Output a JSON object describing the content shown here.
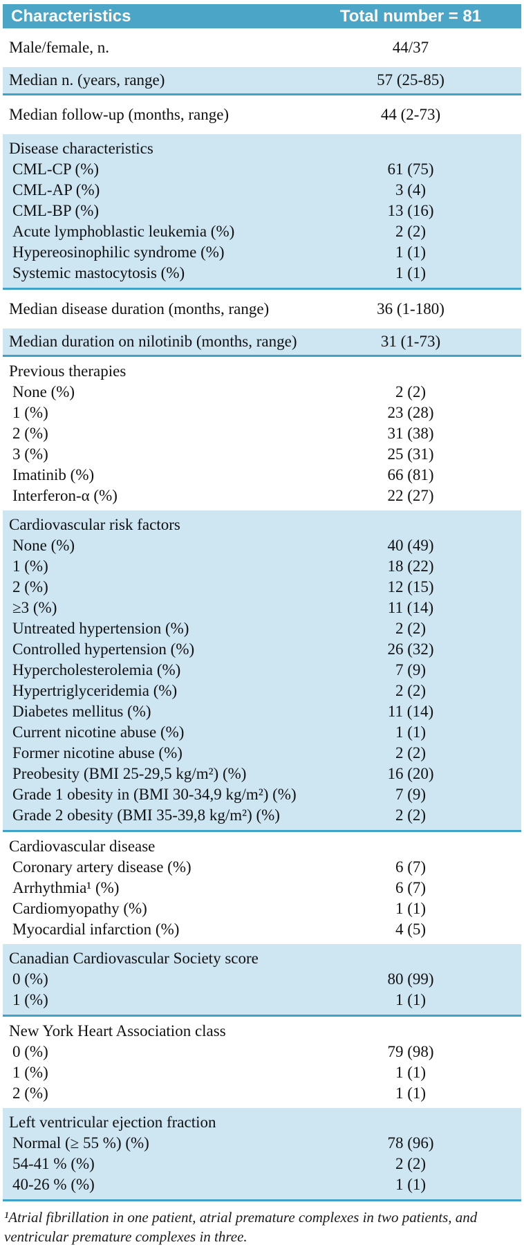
{
  "table": {
    "header": {
      "characteristics_label": "Characteristics",
      "total_label": "Total number = 81"
    },
    "sections": [
      {
        "type": "row",
        "shaded": false,
        "label": "Male/female, n.",
        "value": "44/37"
      },
      {
        "type": "row",
        "shaded": true,
        "label": "Median n. (years, range)",
        "value": "57 (25-85)"
      },
      {
        "type": "row",
        "shaded": false,
        "label": "Median follow-up (months, range)",
        "value": "44 (2-73)"
      },
      {
        "type": "group",
        "shaded": true,
        "title": "Disease characteristics",
        "rows": [
          {
            "label": "CML-CP (%)",
            "value": "61 (75)"
          },
          {
            "label": "CML-AP (%)",
            "value": "3 (4)"
          },
          {
            "label": "CML-BP (%)",
            "value": "13 (16)"
          },
          {
            "label": "Acute lymphoblastic leukemia (%)",
            "value": "2 (2)"
          },
          {
            "label": "Hypereosinophilic syndrome (%)",
            "value": "1 (1)"
          },
          {
            "label": "Systemic mastocytosis (%)",
            "value": "1 (1)"
          }
        ]
      },
      {
        "type": "row",
        "shaded": false,
        "label": "Median disease duration (months, range)",
        "value": "36 (1-180)"
      },
      {
        "type": "row",
        "shaded": true,
        "label": "Median duration on nilotinib (months, range)",
        "value": "31 (1-73)"
      },
      {
        "type": "group",
        "shaded": false,
        "title": "Previous therapies",
        "rows": [
          {
            "label": "None (%)",
            "value": "2 (2)"
          },
          {
            "label": "1 (%)",
            "value": "23 (28)"
          },
          {
            "label": "2 (%)",
            "value": "31 (38)"
          },
          {
            "label": "3 (%)",
            "value": "25 (31)"
          },
          {
            "label": "Imatinib (%)",
            "value": "66 (81)"
          },
          {
            "label": "Interferon-α (%)",
            "value": "22 (27)"
          }
        ]
      },
      {
        "type": "group",
        "shaded": true,
        "title": "Cardiovascular risk factors",
        "rows": [
          {
            "label": "None (%)",
            "value": "40 (49)"
          },
          {
            "label": "1 (%)",
            "value": "18 (22)"
          },
          {
            "label": "2 (%)",
            "value": "12 (15)"
          },
          {
            "label": "≥3 (%)",
            "value": "11 (14)"
          },
          {
            "label": "Untreated hypertension (%)",
            "value": "2 (2)"
          },
          {
            "label": "Controlled hypertension (%)",
            "value": "26 (32)"
          },
          {
            "label": "Hypercholesterolemia (%)",
            "value": "7 (9)"
          },
          {
            "label": "Hypertriglyceridemia (%)",
            "value": "2 (2)"
          },
          {
            "label": "Diabetes mellitus (%)",
            "value": "11 (14)"
          },
          {
            "label": "Current nicotine abuse (%)",
            "value": "1 (1)"
          },
          {
            "label": "Former nicotine abuse (%)",
            "value": "2 (2)"
          },
          {
            "label": "Preobesity (BMI 25-29,5 kg/m²) (%)",
            "value": "16 (20)"
          },
          {
            "label": "Grade 1 obesity in (BMI 30-34,9 kg/m²) (%)",
            "value": "7 (9)"
          },
          {
            "label": "Grade 2 obesity (BMI 35-39,8 kg/m²) (%)",
            "value": "2 (2)"
          }
        ]
      },
      {
        "type": "group",
        "shaded": false,
        "title": "Cardiovascular disease",
        "rows": [
          {
            "label": "Coronary artery disease (%)",
            "value": "6 (7)"
          },
          {
            "label": "Arrhythmia¹ (%)",
            "value": "6 (7)"
          },
          {
            "label": "Cardiomyopathy (%)",
            "value": "1 (1)"
          },
          {
            "label": "Myocardial infarction (%)",
            "value": "4 (5)"
          }
        ]
      },
      {
        "type": "group",
        "shaded": true,
        "title": "Canadian Cardiovascular Society score",
        "rows": [
          {
            "label": "0 (%)",
            "value": "80 (99)"
          },
          {
            "label": "1 (%)",
            "value": "1 (1)"
          }
        ]
      },
      {
        "type": "group",
        "shaded": false,
        "title": "New York Heart Association class",
        "rows": [
          {
            "label": "0 (%)",
            "value": "79 (98)"
          },
          {
            "label": "1 (%)",
            "value": "1 (1)"
          },
          {
            "label": "2 (%)",
            "value": "1 (1)"
          }
        ]
      },
      {
        "type": "group",
        "shaded": true,
        "title": "Left ventricular ejection fraction",
        "rows": [
          {
            "label": "Normal (≥ 55 %) (%)",
            "value": "78 (96)"
          },
          {
            "label": "54-41 % (%)",
            "value": "2 (2)"
          },
          {
            "label": "40-26 % (%)",
            "value": "1 (1)"
          }
        ]
      }
    ],
    "footnote": "¹Atrial fibrillation in one patient, atrial premature complexes in two patients, and ventricular premature complexes in three."
  },
  "colors": {
    "header_bg": "#4BA5C6",
    "header_text": "#FFFFFF",
    "band_bg": "#CEE5F2",
    "rule": "#3FA3C9",
    "body_text": "#111111"
  }
}
